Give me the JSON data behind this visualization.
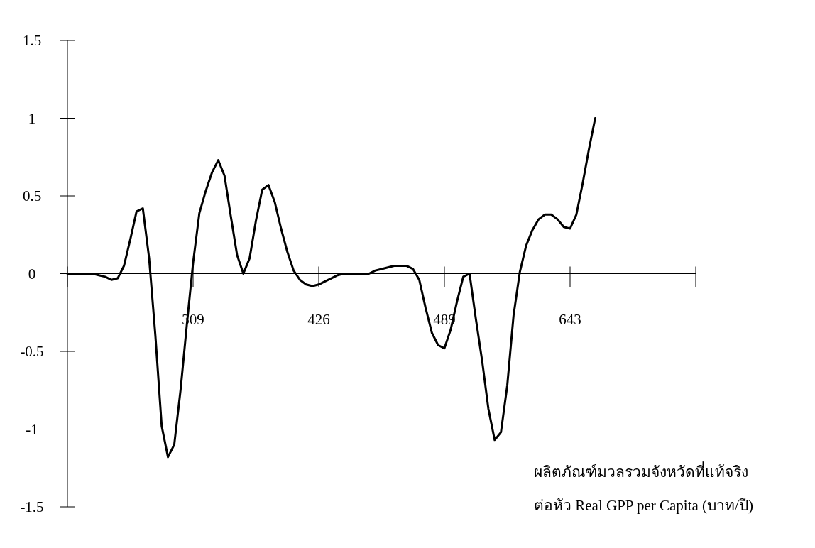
{
  "chart_data": {
    "type": "line",
    "xlabel": "ผลิตภัณฑ์มวลรวมจังหวัดที่แท้จริง ต่อหัว  Real GPP per Capita (บาท/ปี)",
    "categories": [
      null,
      null,
      null,
      null,
      null,
      null,
      null,
      null,
      null,
      null,
      null,
      null,
      null,
      null,
      null,
      null,
      null,
      null,
      null,
      null,
      "309",
      null,
      null,
      null,
      null,
      null,
      null,
      null,
      null,
      null,
      null,
      null,
      null,
      null,
      null,
      null,
      null,
      null,
      null,
      null,
      "426",
      null,
      null,
      null,
      null,
      null,
      null,
      null,
      null,
      null,
      null,
      null,
      null,
      null,
      null,
      null,
      null,
      null,
      null,
      null,
      "489",
      null,
      null,
      null,
      null,
      null,
      null,
      null,
      null,
      null,
      null,
      null,
      null,
      null,
      null,
      null,
      null,
      null,
      null,
      null,
      "643",
      null,
      null,
      null,
      null,
      null,
      null,
      null,
      null,
      null,
      null,
      null,
      null,
      null,
      null,
      null,
      null,
      null,
      null,
      null,
      null
    ],
    "ylim": [
      -1.5,
      1.5
    ],
    "yticks": [
      -1.5,
      -1,
      -0.5,
      0,
      0.5,
      1,
      1.5
    ],
    "series": [
      {
        "color": "#000000",
        "values": [
          0,
          0,
          0,
          0,
          0,
          -0.01,
          -0.02,
          -0.04,
          -0.03,
          0.05,
          0.22,
          0.4,
          0.42,
          0.1,
          -0.4,
          -0.98,
          -1.18,
          -1.1,
          -0.75,
          -0.33,
          0.07,
          0.39,
          0.53,
          0.65,
          0.73,
          0.63,
          0.37,
          0.12,
          0,
          0.1,
          0.34,
          0.54,
          0.57,
          0.46,
          0.29,
          0.14,
          0.02,
          -0.04,
          -0.07,
          -0.08,
          -0.07,
          -0.05,
          -0.03,
          -0.01,
          0,
          0,
          0,
          0,
          0,
          0.02,
          0.03,
          0.04,
          0.05,
          0.05,
          0.05,
          0.03,
          -0.04,
          -0.22,
          -0.38,
          -0.46,
          -0.48,
          -0.36,
          -0.18,
          -0.02,
          0,
          -0.29,
          -0.56,
          -0.87,
          -1.07,
          -1.02,
          -0.72,
          -0.27,
          0.01,
          0.18,
          0.28,
          0.35,
          0.38,
          0.38,
          0.35,
          0.3,
          0.29,
          0.38,
          0.58,
          0.8,
          1.0,
          null,
          null,
          null,
          null,
          null,
          null,
          null,
          null,
          null,
          null,
          null,
          null,
          null,
          null,
          null,
          null
        ]
      }
    ]
  }
}
